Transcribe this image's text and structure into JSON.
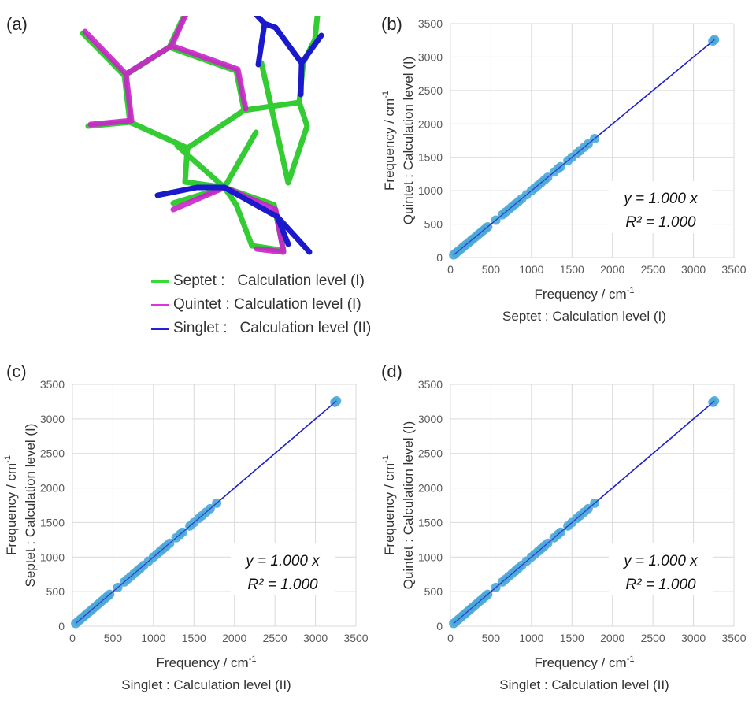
{
  "panel_labels": {
    "a": "(a)",
    "b": "(b)",
    "c": "(c)",
    "d": "(d)"
  },
  "molecule_legend": [
    {
      "label": "Septet :   Calculation level (I)",
      "color": "#33dd33"
    },
    {
      "label": "Quintet : Calculation level (I)",
      "color": "#dd33dd"
    },
    {
      "label": "Singlet :   Calculation level (II)",
      "color": "#2222dd"
    }
  ],
  "colors": {
    "marker": "#4aa8d8",
    "fit_line": "#2222cc",
    "grid": "#d9d9d9"
  },
  "chart_data": [
    {
      "id": "b",
      "type": "scatter",
      "xlabel_line1": "Frequency / cm",
      "xlabel_sup": "-1",
      "xlabel_line2": "Septet : Calculation level (I)",
      "ylabel_line1": "Frequency / cm",
      "ylabel_sup": "-1",
      "ylabel_line2": "Quintet : Calculation level (I)",
      "xlim": [
        0,
        3500
      ],
      "ylim": [
        0,
        3500
      ],
      "xticks": [
        "0",
        "500",
        "1000",
        "1500",
        "2000",
        "2500",
        "3000",
        "3500"
      ],
      "yticks": [
        "0",
        "500",
        "1000",
        "1500",
        "2000",
        "2500",
        "3000",
        "3500"
      ],
      "grid": true,
      "equation": "y = 1.000 x",
      "r2": "R² = 1.000",
      "fit": {
        "slope": 1.0,
        "intercept": 0
      },
      "series": [
        {
          "x": [
            40,
            70,
            100,
            130,
            160,
            190,
            220,
            250,
            280,
            310,
            340,
            370,
            400,
            430,
            460,
            560,
            640,
            680,
            720,
            760,
            800,
            840,
            880,
            940,
            1000,
            1040,
            1080,
            1120,
            1160,
            1200,
            1280,
            1330,
            1360,
            1450,
            1500,
            1560,
            1600,
            1650,
            1700,
            1780,
            3240,
            3260
          ],
          "y": [
            40,
            70,
            100,
            130,
            160,
            190,
            220,
            250,
            280,
            310,
            340,
            370,
            400,
            430,
            460,
            560,
            640,
            680,
            720,
            760,
            800,
            840,
            880,
            940,
            1000,
            1040,
            1080,
            1120,
            1160,
            1200,
            1280,
            1330,
            1360,
            1450,
            1500,
            1560,
            1600,
            1650,
            1700,
            1780,
            3240,
            3260
          ]
        }
      ]
    },
    {
      "id": "c",
      "type": "scatter",
      "xlabel_line1": "Frequency / cm",
      "xlabel_sup": "-1",
      "xlabel_line2": "Singlet : Calculation level (II)",
      "ylabel_line1": "Frequency / cm",
      "ylabel_sup": "-1",
      "ylabel_line2": "Septet : Calculation level (I)",
      "xlim": [
        0,
        3500
      ],
      "ylim": [
        0,
        3500
      ],
      "xticks": [
        "0",
        "500",
        "1000",
        "1500",
        "2000",
        "2500",
        "3000",
        "3500"
      ],
      "yticks": [
        "0",
        "500",
        "1000",
        "1500",
        "2000",
        "2500",
        "3000",
        "3500"
      ],
      "grid": true,
      "equation": "y = 1.000 x",
      "r2": "R² = 1.000",
      "fit": {
        "slope": 1.0,
        "intercept": 0
      },
      "series": [
        {
          "x": [
            40,
            70,
            100,
            130,
            160,
            190,
            220,
            250,
            280,
            310,
            340,
            370,
            400,
            430,
            460,
            560,
            640,
            680,
            720,
            760,
            800,
            840,
            880,
            940,
            1000,
            1040,
            1080,
            1120,
            1160,
            1200,
            1280,
            1330,
            1360,
            1450,
            1500,
            1560,
            1600,
            1650,
            1700,
            1780,
            3240,
            3260
          ],
          "y": [
            40,
            70,
            100,
            130,
            160,
            190,
            220,
            250,
            280,
            310,
            340,
            370,
            400,
            430,
            460,
            560,
            640,
            680,
            720,
            760,
            800,
            840,
            880,
            940,
            1000,
            1040,
            1080,
            1120,
            1160,
            1200,
            1280,
            1330,
            1360,
            1450,
            1500,
            1560,
            1600,
            1650,
            1700,
            1780,
            3240,
            3260
          ]
        }
      ]
    },
    {
      "id": "d",
      "type": "scatter",
      "xlabel_line1": "Frequency / cm",
      "xlabel_sup": "-1",
      "xlabel_line2": "Singlet : Calculation level (II)",
      "ylabel_line1": "Frequency / cm",
      "ylabel_sup": "-1",
      "ylabel_line2": "Quintet : Calculation level (I)",
      "xlim": [
        0,
        3500
      ],
      "ylim": [
        0,
        3500
      ],
      "xticks": [
        "0",
        "500",
        "1000",
        "1500",
        "2000",
        "2500",
        "3000",
        "3500"
      ],
      "yticks": [
        "0",
        "500",
        "1000",
        "1500",
        "2000",
        "2500",
        "3000",
        "3500"
      ],
      "grid": true,
      "equation": "y = 1.000 x",
      "r2": "R² = 1.000",
      "fit": {
        "slope": 1.0,
        "intercept": 0
      },
      "series": [
        {
          "x": [
            40,
            70,
            100,
            130,
            160,
            190,
            220,
            250,
            280,
            310,
            340,
            370,
            400,
            430,
            460,
            560,
            640,
            680,
            720,
            760,
            800,
            840,
            880,
            940,
            1000,
            1040,
            1080,
            1120,
            1160,
            1200,
            1280,
            1330,
            1360,
            1450,
            1500,
            1560,
            1600,
            1650,
            1700,
            1780,
            3240,
            3260
          ],
          "y": [
            40,
            70,
            100,
            130,
            160,
            190,
            220,
            250,
            280,
            310,
            340,
            370,
            400,
            430,
            460,
            560,
            640,
            680,
            720,
            760,
            800,
            840,
            880,
            940,
            1000,
            1040,
            1080,
            1120,
            1160,
            1200,
            1280,
            1330,
            1360,
            1450,
            1500,
            1560,
            1600,
            1650,
            1700,
            1780,
            3240,
            3260
          ]
        }
      ]
    }
  ]
}
